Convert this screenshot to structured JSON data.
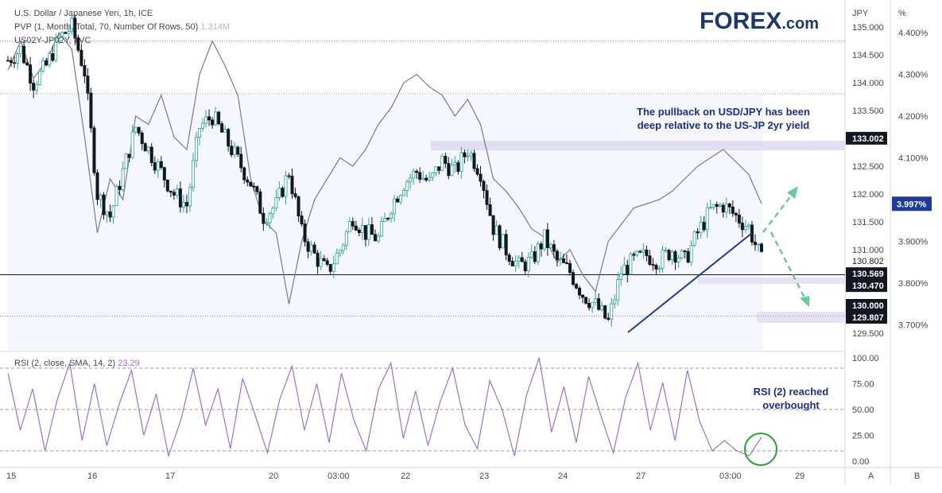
{
  "header": {
    "symbol_line": "U.S. Dollar / Japanese Yen, 1h, ICE",
    "pvp_line": "PVP (1, Month, Total, 70, Number Of Rows, 50)",
    "pvp_value": "1.314M",
    "overlay_line": "US02Y-JP02Y, TVC"
  },
  "logo": {
    "text": "FOREX",
    "suffix": ".com"
  },
  "annotations": {
    "main_note": [
      "The pullback on USD/JPY has been",
      "deep relative to the US-JP 2yr yield"
    ],
    "rsi_note": [
      "RSI (2) reached",
      "overbought"
    ]
  },
  "colors": {
    "up": "#26a69a",
    "down": "#131722",
    "yield_line": "#787b86",
    "rsi_line": "#9c6fd6",
    "trendline": "#1e3a9c",
    "projection": "#66cc99",
    "accent_label": "#1e3a9c",
    "circle": "#2ca02c"
  },
  "chart_data": [
    {
      "type": "candlestick",
      "title": "U.S. Dollar / Japanese Yen, 1h, ICE",
      "axis_title": "JPY",
      "ylim": [
        129.2,
        135.2
      ],
      "y_ticks": [
        "135.000",
        "134.500",
        "134.000",
        "133.500",
        "133.000",
        "132.500",
        "132.000",
        "131.500",
        "131.000",
        "129.500"
      ],
      "x_labels": [
        "15",
        "16",
        "17",
        "20",
        "03:00",
        "22",
        "23",
        "24",
        "27",
        "03:00",
        "29"
      ],
      "price_labels": [
        {
          "value": 133.002,
          "text": "133.002",
          "style": "dark"
        },
        {
          "value": 130.802,
          "text": "130.802",
          "style": "plain"
        },
        {
          "value": 130.569,
          "text": "130.569",
          "style": "dark"
        },
        {
          "value": 130.47,
          "text": "130.470",
          "style": "dark"
        },
        {
          "value": 130.0,
          "text": "130.000",
          "style": "dark"
        },
        {
          "value": 129.807,
          "text": "129.807",
          "style": "dark"
        }
      ],
      "close_path": [
        134.4,
        134.6,
        134.0,
        134.3,
        134.8,
        135.0,
        134.2,
        132.0,
        131.6,
        132.4,
        133.2,
        132.8,
        132.4,
        132.0,
        131.8,
        133.2,
        133.4,
        133.0,
        132.6,
        132.2,
        131.6,
        131.8,
        132.4,
        131.3,
        130.9,
        130.6,
        131.0,
        131.6,
        131.3,
        131.2,
        131.8,
        132.2,
        132.4,
        132.2,
        132.6,
        132.4,
        132.8,
        132.4,
        131.4,
        131.0,
        130.7,
        130.8,
        131.2,
        130.8,
        130.6,
        130.2,
        130.0,
        129.7,
        130.6,
        130.8,
        130.9,
        130.8,
        131.0,
        130.8,
        131.3,
        131.7,
        131.8,
        131.6,
        131.4,
        130.8
      ],
      "horizontal_lines": [
        134.75,
        133.8,
        130.55,
        129.807
      ]
    },
    {
      "type": "line",
      "axis_title": "%",
      "series_name": "US02Y-JP02Y, TVC",
      "ylim": [
        3.64,
        4.44
      ],
      "y_ticks": [
        "4.400%",
        "4.300%",
        "4.200%",
        "4.100%",
        "4.000%",
        "3.900%",
        "3.800%",
        "3.700%"
      ],
      "last_label": "3.997%",
      "values": [
        4.31,
        4.38,
        4.29,
        4.33,
        4.4,
        4.36,
        4.15,
        3.92,
        4.05,
        4.0,
        4.2,
        4.18,
        4.25,
        4.15,
        4.12,
        4.3,
        4.38,
        4.32,
        4.25,
        4.05,
        3.95,
        3.92,
        3.75,
        3.9,
        4.0,
        4.05,
        4.1,
        4.08,
        4.12,
        4.18,
        4.22,
        4.28,
        4.3,
        4.27,
        4.25,
        4.2,
        4.24,
        4.18,
        4.05,
        4.02,
        3.98,
        3.93,
        3.91,
        3.85,
        3.88,
        3.82,
        3.78,
        3.9,
        3.94,
        3.98,
        3.99,
        4.0,
        4.02,
        4.05,
        4.08,
        4.1,
        4.12,
        4.09,
        4.06,
        3.99
      ]
    },
    {
      "type": "line",
      "title": "RSI (2, close, SMA, 14, 2)",
      "value_label": "23.29",
      "ylim": [
        0,
        100
      ],
      "y_ticks": [
        "100.00",
        "75.00",
        "50.00",
        "25.00",
        "0.00"
      ],
      "levels": [
        90,
        50,
        10
      ],
      "values": [
        85,
        30,
        70,
        10,
        60,
        95,
        20,
        75,
        15,
        55,
        88,
        25,
        65,
        5,
        40,
        90,
        35,
        70,
        12,
        80,
        45,
        8,
        60,
        92,
        30,
        75,
        18,
        85,
        40,
        10,
        70,
        95,
        22,
        68,
        15,
        58,
        90,
        35,
        12,
        78,
        50,
        5,
        65,
        100,
        28,
        72,
        18,
        82,
        44,
        8,
        62,
        95,
        30,
        76,
        20,
        88,
        38,
        10,
        20,
        10,
        5,
        23.29
      ]
    }
  ],
  "bottom_axis": {
    "a_label": "A",
    "b_label": "B"
  }
}
